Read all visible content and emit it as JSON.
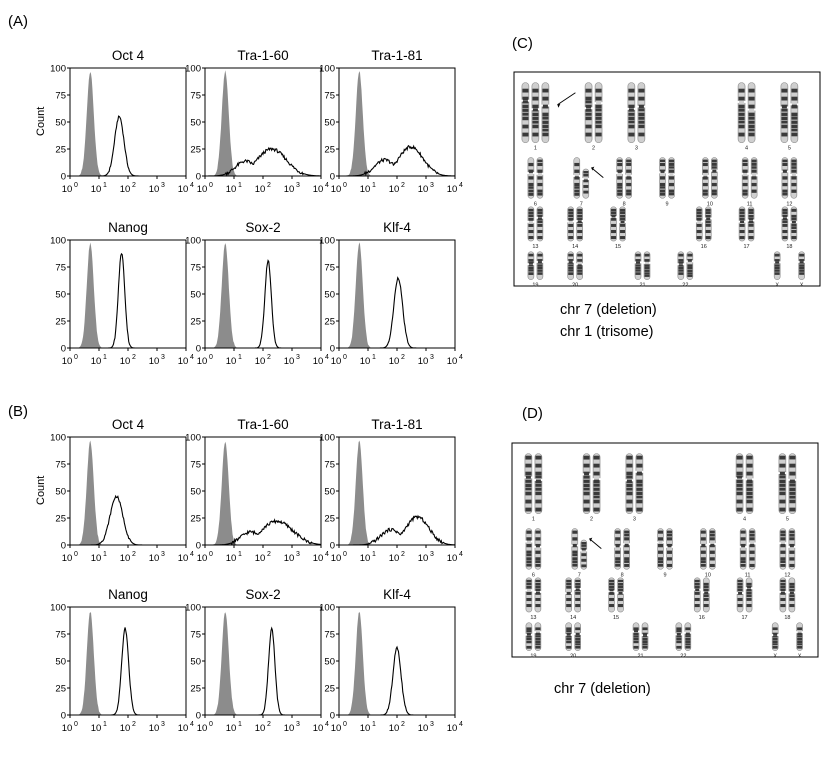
{
  "panels": {
    "A": "(A)",
    "B": "(B)",
    "C": "(C)",
    "D": "(D)"
  },
  "y_axis_label": "Count",
  "y_ticks": [
    "0",
    "25",
    "50",
    "75",
    "100"
  ],
  "x_ticks": [
    {
      "base": "10",
      "exp": "0"
    },
    {
      "base": "10",
      "exp": "1"
    },
    {
      "base": "10",
      "exp": "2"
    },
    {
      "base": "10",
      "exp": "3"
    },
    {
      "base": "10",
      "exp": "4"
    }
  ],
  "chart_data": [
    {
      "type": "area",
      "panel": "A",
      "title": "Oct 4",
      "xscale": "log",
      "xlim": [
        1,
        10000
      ],
      "ylim": [
        0,
        100
      ],
      "series": [
        {
          "peak_x": 5,
          "peak_y": 97,
          "width": 0.12,
          "filled": true
        },
        {
          "peak_x": 50,
          "peak_y": 55,
          "width": 0.16,
          "filled": false
        }
      ]
    },
    {
      "type": "area",
      "panel": "A",
      "title": "Tra-1-60",
      "xscale": "log",
      "xlim": [
        1,
        10000
      ],
      "ylim": [
        0,
        100
      ],
      "series": [
        {
          "peak_x": 5,
          "peak_y": 97,
          "width": 0.12,
          "filled": true
        },
        {
          "peak_x": 200,
          "peak_y": 25,
          "width": 0.5,
          "filled": false,
          "broad": true
        }
      ]
    },
    {
      "type": "area",
      "panel": "A",
      "title": "Tra-1-81",
      "xscale": "log",
      "xlim": [
        1,
        10000
      ],
      "ylim": [
        0,
        100
      ],
      "series": [
        {
          "peak_x": 5,
          "peak_y": 97,
          "width": 0.12,
          "filled": true
        },
        {
          "peak_x": 300,
          "peak_y": 27,
          "width": 0.42,
          "filled": false,
          "broad": true
        }
      ]
    },
    {
      "type": "area",
      "panel": "A",
      "title": "Nanog",
      "xscale": "log",
      "xlim": [
        1,
        10000
      ],
      "ylim": [
        0,
        100
      ],
      "series": [
        {
          "peak_x": 5,
          "peak_y": 97,
          "width": 0.12,
          "filled": true
        },
        {
          "peak_x": 60,
          "peak_y": 88,
          "width": 0.11,
          "filled": false
        }
      ]
    },
    {
      "type": "area",
      "panel": "A",
      "title": "Sox-2",
      "xscale": "log",
      "xlim": [
        1,
        10000
      ],
      "ylim": [
        0,
        100
      ],
      "series": [
        {
          "peak_x": 5,
          "peak_y": 97,
          "width": 0.12,
          "filled": true
        },
        {
          "peak_x": 150,
          "peak_y": 81,
          "width": 0.11,
          "filled": false
        }
      ]
    },
    {
      "type": "area",
      "panel": "A",
      "title": "Klf-4",
      "xscale": "log",
      "xlim": [
        1,
        10000
      ],
      "ylim": [
        0,
        100
      ],
      "series": [
        {
          "peak_x": 5,
          "peak_y": 97,
          "width": 0.12,
          "filled": true
        },
        {
          "peak_x": 110,
          "peak_y": 65,
          "width": 0.15,
          "filled": false
        }
      ]
    },
    {
      "type": "area",
      "panel": "B",
      "title": "Oct 4",
      "xscale": "log",
      "xlim": [
        1,
        10000
      ],
      "ylim": [
        0,
        100
      ],
      "series": [
        {
          "peak_x": 5,
          "peak_y": 96,
          "width": 0.12,
          "filled": true
        },
        {
          "peak_x": 40,
          "peak_y": 45,
          "width": 0.22,
          "filled": false
        }
      ]
    },
    {
      "type": "area",
      "panel": "B",
      "title": "Tra-1-60",
      "xscale": "log",
      "xlim": [
        1,
        10000
      ],
      "ylim": [
        0,
        100
      ],
      "series": [
        {
          "peak_x": 5,
          "peak_y": 96,
          "width": 0.12,
          "filled": true
        },
        {
          "peak_x": 300,
          "peak_y": 22,
          "width": 0.55,
          "filled": false,
          "broad": true
        }
      ]
    },
    {
      "type": "area",
      "panel": "B",
      "title": "Tra-1-81",
      "xscale": "log",
      "xlim": [
        1,
        10000
      ],
      "ylim": [
        0,
        100
      ],
      "series": [
        {
          "peak_x": 5,
          "peak_y": 96,
          "width": 0.12,
          "filled": true
        },
        {
          "peak_x": 500,
          "peak_y": 26,
          "width": 0.4,
          "filled": false,
          "broad": true
        }
      ]
    },
    {
      "type": "area",
      "panel": "B",
      "title": "Nanog",
      "xscale": "log",
      "xlim": [
        1,
        10000
      ],
      "ylim": [
        0,
        100
      ],
      "series": [
        {
          "peak_x": 5,
          "peak_y": 96,
          "width": 0.12,
          "filled": true
        },
        {
          "peak_x": 80,
          "peak_y": 80,
          "width": 0.12,
          "filled": false
        }
      ]
    },
    {
      "type": "area",
      "panel": "B",
      "title": "Sox-2",
      "xscale": "log",
      "xlim": [
        1,
        10000
      ],
      "ylim": [
        0,
        100
      ],
      "series": [
        {
          "peak_x": 5,
          "peak_y": 96,
          "width": 0.12,
          "filled": true
        },
        {
          "peak_x": 200,
          "peak_y": 80,
          "width": 0.11,
          "filled": false
        }
      ]
    },
    {
      "type": "area",
      "panel": "B",
      "title": "Klf-4",
      "xscale": "log",
      "xlim": [
        1,
        10000
      ],
      "ylim": [
        0,
        100
      ],
      "series": [
        {
          "peak_x": 5,
          "peak_y": 96,
          "width": 0.12,
          "filled": true
        },
        {
          "peak_x": 100,
          "peak_y": 62,
          "width": 0.14,
          "filled": false
        }
      ]
    }
  ],
  "karyotypes": [
    {
      "panel": "C",
      "captions": [
        "chr 7 (deletion)",
        "chr 1 (trisome)"
      ],
      "rows": [
        [
          "1",
          "2",
          "3",
          "4",
          "5"
        ],
        [
          "6",
          "7",
          "8",
          "9",
          "10",
          "11",
          "12"
        ],
        [
          "13",
          "14",
          "15",
          "16",
          "17",
          "18"
        ],
        [
          "19",
          "20",
          "21",
          "22",
          "X",
          "X"
        ]
      ]
    },
    {
      "panel": "D",
      "captions": [
        "chr 7 (deletion)"
      ],
      "rows": [
        [
          "1",
          "2",
          "3",
          "4",
          "5"
        ],
        [
          "6",
          "7",
          "8",
          "9",
          "10",
          "11",
          "12"
        ],
        [
          "13",
          "14",
          "15",
          "16",
          "17",
          "18"
        ],
        [
          "19",
          "20",
          "21",
          "22",
          "X",
          "X"
        ]
      ]
    }
  ],
  "colors": {
    "fill": "#8c8c8c",
    "line": "#000000",
    "chromosome_dark": "#3a3a3a",
    "chromosome_light": "#cfcfcf"
  }
}
